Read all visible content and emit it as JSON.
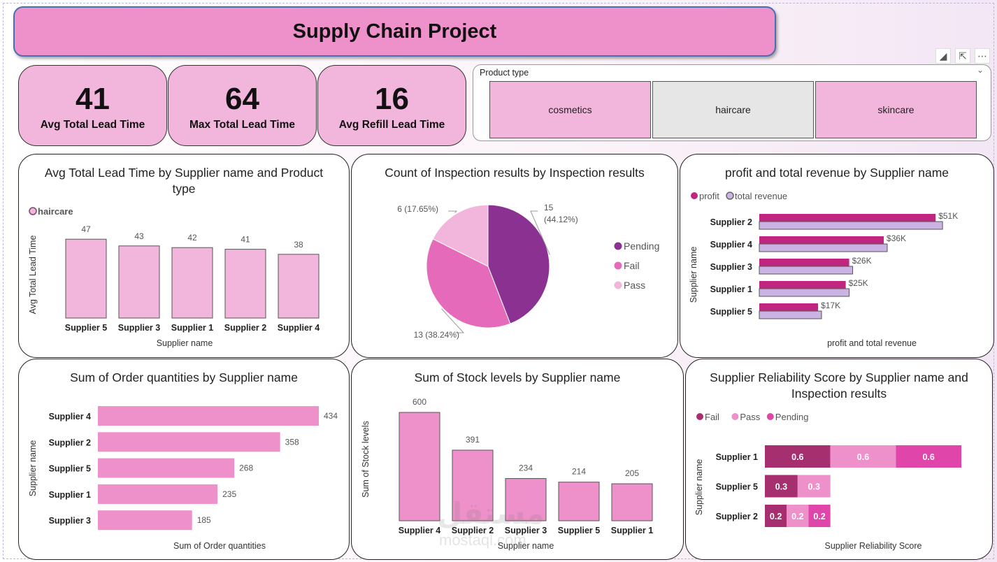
{
  "title": "Supply Chain Project",
  "kpis": [
    {
      "value": "41",
      "label": "Avg Total Lead Time"
    },
    {
      "value": "64",
      "label": "Max Total Lead Time"
    },
    {
      "value": "16",
      "label": "Avg Refill Lead Time"
    }
  ],
  "slicer": {
    "header": "Product type",
    "options": [
      {
        "label": "cosmetics",
        "selected": true
      },
      {
        "label": "haircare",
        "selected": false
      },
      {
        "label": "skincare",
        "selected": true
      }
    ]
  },
  "watermark": {
    "arabic": "مستقل",
    "latin": "mostaql.com"
  },
  "colors": {
    "pink": "#f2b6dc",
    "title": "#ee90c9",
    "mag": "#c0257f",
    "lav": "#c9b4e3",
    "purple": "#8b3192",
    "mid": "#e56bba",
    "light": "#f2b6dc"
  },
  "chart_data": [
    {
      "id": "lead",
      "type": "bar",
      "title": "Avg Total Lead Time by Supplier name and Product type",
      "legend": [
        "haircare"
      ],
      "xlabel": "Supplier name",
      "ylabel": "Avg Total Lead Time",
      "categories": [
        "Supplier 5",
        "Supplier 3",
        "Supplier 1",
        "Supplier 2",
        "Supplier 4"
      ],
      "series": [
        {
          "name": "haircare",
          "values": [
            47,
            43,
            42,
            41,
            38
          ]
        }
      ],
      "ylim": [
        0,
        50
      ],
      "labels": [
        "47",
        "43",
        "42",
        "41",
        "38"
      ]
    },
    {
      "id": "pie",
      "type": "pie",
      "title": "Count of Inspection results by Inspection results",
      "categories": [
        "Pending",
        "Fail",
        "Pass"
      ],
      "values": [
        15,
        13,
        6
      ],
      "labels": [
        "15 (44.12%)",
        "13 (38.24%)",
        "6 (17.65%)"
      ]
    },
    {
      "id": "profit",
      "type": "bar",
      "orientation": "horizontal",
      "title": "profit and total revenue by Supplier name",
      "xlabel": "profit and total revenue",
      "ylabel": "Supplier name",
      "categories": [
        "Supplier 2",
        "Supplier 4",
        "Supplier 3",
        "Supplier 1",
        "Supplier 5"
      ],
      "series": [
        {
          "name": "profit",
          "values": [
            51,
            36,
            26,
            25,
            17
          ]
        },
        {
          "name": "total revenue",
          "values": [
            53,
            37,
            27,
            26,
            18
          ]
        }
      ],
      "labels": [
        "$51K",
        "$36K",
        "$26K",
        "$25K",
        "$17K"
      ],
      "xlim": [
        0,
        55
      ]
    },
    {
      "id": "order",
      "type": "bar",
      "orientation": "horizontal",
      "title": "Sum of Order quantities by Supplier name",
      "xlabel": "Sum of Order quantities",
      "ylabel": "Supplier name",
      "categories": [
        "Supplier 4",
        "Supplier 2",
        "Supplier 5",
        "Supplier 1",
        "Supplier 3"
      ],
      "values": [
        434,
        358,
        268,
        235,
        185
      ],
      "labels": [
        "434",
        "358",
        "268",
        "235",
        "185"
      ],
      "xlim": [
        0,
        434
      ]
    },
    {
      "id": "stock",
      "type": "bar",
      "title": "Sum of Stock levels by Supplier name",
      "xlabel": "Supplier name",
      "ylabel": "Sum of Stock levels",
      "categories": [
        "Supplier 4",
        "Supplier 2",
        "Supplier 3",
        "Supplier 5",
        "Supplier 1"
      ],
      "values": [
        600,
        391,
        234,
        214,
        205
      ],
      "labels": [
        "600",
        "391",
        "234",
        "214",
        "205"
      ],
      "ylim": [
        0,
        600
      ]
    },
    {
      "id": "rel",
      "type": "bar",
      "orientation": "horizontal",
      "stacked": true,
      "title": "Supplier Reliability Score by Supplier name and Inspection results",
      "xlabel": "Supplier Reliability Score",
      "ylabel": "Supplier name",
      "categories": [
        "Supplier 1",
        "Supplier 5",
        "Supplier 2"
      ],
      "series": [
        {
          "name": "Fail",
          "values": [
            0.6,
            0.3,
            0.2
          ],
          "labels": [
            "0.6",
            "0.3",
            "0.2"
          ]
        },
        {
          "name": "Pass",
          "values": [
            0.6,
            0.3,
            0.2
          ],
          "labels": [
            "0.6",
            "0.3",
            "0.2"
          ]
        },
        {
          "name": "Pending",
          "values": [
            0.6,
            null,
            0.2
          ],
          "labels": [
            "0.6",
            "",
            "0.2"
          ]
        }
      ],
      "xlim": [
        0,
        1.8
      ]
    }
  ]
}
